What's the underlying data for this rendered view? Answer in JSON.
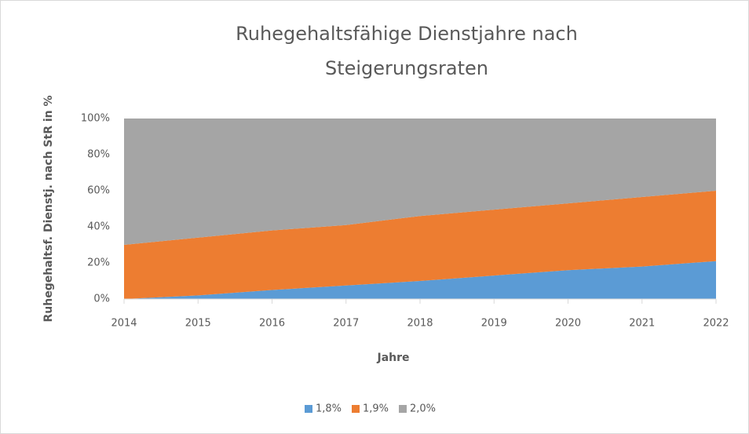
{
  "chart_data": {
    "type": "stacked_area",
    "title": [
      "Ruhegehaltsfähige Dienstjahre nach",
      "Steigerungsraten"
    ],
    "x_label": "Jahre",
    "y_label": "Ruhegehaltsf. Dienstj. nach StR in %",
    "categories": [
      "2014",
      "2015",
      "2016",
      "2017",
      "2018",
      "2019",
      "2020",
      "2021",
      "2022"
    ],
    "series": [
      {
        "name": "1,8%",
        "color": "#5b9bd5",
        "values": [
          0,
          2,
          5,
          7.5,
          10,
          13,
          16,
          18,
          21
        ]
      },
      {
        "name": "1,9%",
        "color": "#ed7d31",
        "values": [
          30,
          32,
          33,
          33.5,
          36,
          36.5,
          37,
          38.5,
          39
        ]
      },
      {
        "name": "2,0%",
        "color": "#a5a5a5",
        "values": [
          70,
          66,
          62,
          59,
          54,
          50.5,
          47,
          43.5,
          40
        ]
      }
    ],
    "ylim": [
      0,
      100
    ],
    "yticks": [
      {
        "value": 0,
        "label": "0%"
      },
      {
        "value": 20,
        "label": "20%"
      },
      {
        "value": 40,
        "label": "40%"
      },
      {
        "value": 60,
        "label": "60%"
      },
      {
        "value": 80,
        "label": "80%"
      },
      {
        "value": 100,
        "label": "100%"
      }
    ],
    "legend": "bottom"
  }
}
